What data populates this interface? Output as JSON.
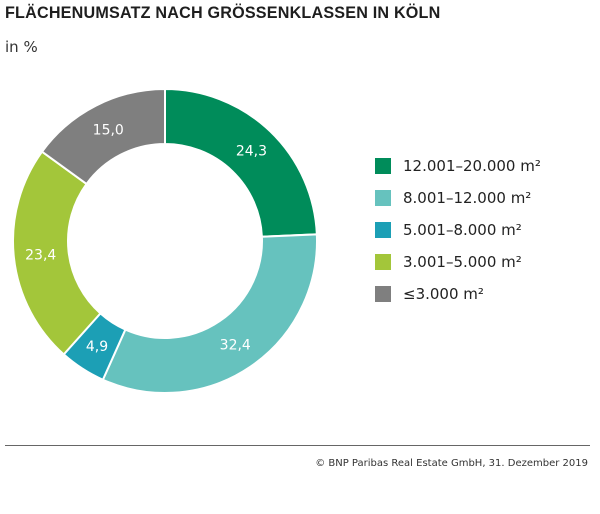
{
  "chart_data": {
    "type": "pie",
    "donut": true,
    "title": "FLÄCHENUMSATZ NACH GRÖSSENKLASSEN IN KÖLN",
    "subtitle": "in %",
    "legend_position": "right",
    "slices": [
      {
        "label": "12.001–20.000 m²",
        "value": 24.3,
        "value_label": "24,3",
        "color": "#008c5a"
      },
      {
        "label": "8.001–12.000 m²",
        "value": 32.4,
        "value_label": "32,4",
        "color": "#66c2be"
      },
      {
        "label": "5.001–8.000 m²",
        "value": 4.9,
        "value_label": "4,9",
        "color": "#1c9fb5"
      },
      {
        "label": "3.001–5.000 m²",
        "value": 23.4,
        "value_label": "23,4",
        "color": "#a3c63a"
      },
      {
        "label": "≤3.000 m²",
        "value": 15.0,
        "value_label": "15,0",
        "color": "#7f7f7f"
      }
    ]
  },
  "footer": "© BNP Paribas Real Estate GmbH, 31. Dezember 2019"
}
